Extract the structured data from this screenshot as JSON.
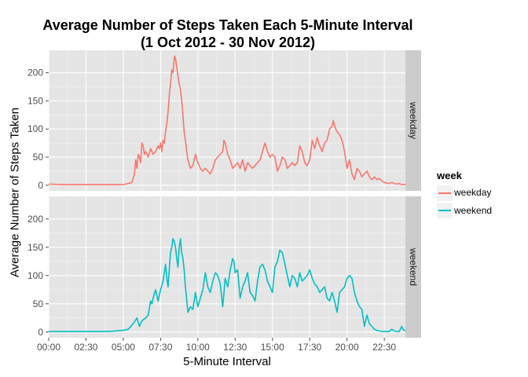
{
  "chart_data": {
    "type": "line",
    "title_line1": "Average Number of Steps Taken Each 5-Minute Interval",
    "title_line2": "(1 Oct 2012 - 30 Nov 2012)",
    "xlabel": "5-Minute Interval",
    "ylabel": "Average Number of Steps Taken",
    "xlim": [
      0,
      1435
    ],
    "ylim": [
      -10,
      240
    ],
    "x_ticks": [
      0,
      150,
      300,
      450,
      600,
      750,
      900,
      1050,
      1200,
      1350
    ],
    "x_tick_labels": [
      "00:00",
      "02:30",
      "05:00",
      "07:30",
      "10:00",
      "12:30",
      "15:00",
      "17:30",
      "20:00",
      "22:30"
    ],
    "y_ticks": [
      0,
      50,
      100,
      150,
      200
    ],
    "y_tick_labels": [
      "0",
      "50",
      "100",
      "150",
      "200"
    ],
    "grid": true,
    "facets": [
      "weekday",
      "weekend"
    ],
    "legend": {
      "title": "week",
      "position": "right",
      "entries": [
        {
          "label": "weekday",
          "color": "#F8766D"
        },
        {
          "label": "weekend",
          "color": "#00BFC4"
        }
      ]
    },
    "series": [
      {
        "name": "weekday",
        "facet": "weekday",
        "color": "#F8766D",
        "points": [
          [
            0,
            2
          ],
          [
            60,
            1
          ],
          [
            120,
            1
          ],
          [
            180,
            1
          ],
          [
            240,
            1
          ],
          [
            300,
            1
          ],
          [
            320,
            3
          ],
          [
            335,
            5
          ],
          [
            345,
            20
          ],
          [
            350,
            45
          ],
          [
            355,
            30
          ],
          [
            360,
            55
          ],
          [
            365,
            50
          ],
          [
            370,
            40
          ],
          [
            375,
            75
          ],
          [
            380,
            70
          ],
          [
            385,
            55
          ],
          [
            390,
            60
          ],
          [
            400,
            50
          ],
          [
            410,
            65
          ],
          [
            420,
            55
          ],
          [
            430,
            60
          ],
          [
            440,
            70
          ],
          [
            445,
            65
          ],
          [
            450,
            75
          ],
          [
            455,
            60
          ],
          [
            460,
            80
          ],
          [
            465,
            75
          ],
          [
            470,
            95
          ],
          [
            475,
            110
          ],
          [
            480,
            130
          ],
          [
            485,
            160
          ],
          [
            490,
            180
          ],
          [
            495,
            205
          ],
          [
            500,
            200
          ],
          [
            503,
            215
          ],
          [
            506,
            230
          ],
          [
            510,
            225
          ],
          [
            515,
            210
          ],
          [
            520,
            195
          ],
          [
            525,
            180
          ],
          [
            530,
            170
          ],
          [
            535,
            150
          ],
          [
            540,
            125
          ],
          [
            545,
            95
          ],
          [
            550,
            80
          ],
          [
            555,
            60
          ],
          [
            560,
            45
          ],
          [
            570,
            30
          ],
          [
            580,
            35
          ],
          [
            590,
            55
          ],
          [
            600,
            40
          ],
          [
            610,
            30
          ],
          [
            620,
            25
          ],
          [
            630,
            30
          ],
          [
            640,
            25
          ],
          [
            650,
            20
          ],
          [
            660,
            30
          ],
          [
            670,
            45
          ],
          [
            680,
            50
          ],
          [
            690,
            55
          ],
          [
            700,
            60
          ],
          [
            705,
            80
          ],
          [
            710,
            75
          ],
          [
            720,
            55
          ],
          [
            730,
            45
          ],
          [
            740,
            30
          ],
          [
            750,
            35
          ],
          [
            760,
            40
          ],
          [
            770,
            30
          ],
          [
            780,
            45
          ],
          [
            790,
            25
          ],
          [
            800,
            40
          ],
          [
            810,
            35
          ],
          [
            820,
            30
          ],
          [
            830,
            35
          ],
          [
            840,
            40
          ],
          [
            850,
            45
          ],
          [
            860,
            60
          ],
          [
            870,
            75
          ],
          [
            880,
            60
          ],
          [
            890,
            50
          ],
          [
            900,
            55
          ],
          [
            910,
            50
          ],
          [
            920,
            25
          ],
          [
            930,
            35
          ],
          [
            940,
            50
          ],
          [
            950,
            45
          ],
          [
            960,
            30
          ],
          [
            970,
            35
          ],
          [
            980,
            40
          ],
          [
            990,
            35
          ],
          [
            1000,
            40
          ],
          [
            1010,
            70
          ],
          [
            1020,
            60
          ],
          [
            1030,
            40
          ],
          [
            1040,
            35
          ],
          [
            1050,
            45
          ],
          [
            1060,
            80
          ],
          [
            1070,
            65
          ],
          [
            1080,
            85
          ],
          [
            1090,
            70
          ],
          [
            1100,
            60
          ],
          [
            1110,
            75
          ],
          [
            1120,
            80
          ],
          [
            1130,
            100
          ],
          [
            1140,
            105
          ],
          [
            1145,
            115
          ],
          [
            1150,
            105
          ],
          [
            1160,
            95
          ],
          [
            1170,
            90
          ],
          [
            1180,
            80
          ],
          [
            1190,
            60
          ],
          [
            1200,
            30
          ],
          [
            1210,
            45
          ],
          [
            1220,
            20
          ],
          [
            1230,
            10
          ],
          [
            1240,
            30
          ],
          [
            1250,
            25
          ],
          [
            1260,
            15
          ],
          [
            1270,
            20
          ],
          [
            1280,
            25
          ],
          [
            1290,
            15
          ],
          [
            1300,
            10
          ],
          [
            1310,
            15
          ],
          [
            1320,
            10
          ],
          [
            1330,
            12
          ],
          [
            1340,
            8
          ],
          [
            1350,
            5
          ],
          [
            1360,
            4
          ],
          [
            1370,
            3
          ],
          [
            1380,
            5
          ],
          [
            1390,
            3
          ],
          [
            1400,
            2
          ],
          [
            1410,
            3
          ],
          [
            1420,
            1
          ],
          [
            1435,
            1
          ]
        ]
      },
      {
        "name": "weekend",
        "facet": "weekend",
        "color": "#00BFC4",
        "points": [
          [
            0,
            1
          ],
          [
            60,
            1
          ],
          [
            120,
            1
          ],
          [
            180,
            1
          ],
          [
            240,
            1
          ],
          [
            270,
            2
          ],
          [
            300,
            3
          ],
          [
            320,
            5
          ],
          [
            340,
            15
          ],
          [
            355,
            25
          ],
          [
            365,
            10
          ],
          [
            375,
            20
          ],
          [
            390,
            25
          ],
          [
            400,
            30
          ],
          [
            410,
            55
          ],
          [
            415,
            50
          ],
          [
            420,
            60
          ],
          [
            430,
            75
          ],
          [
            440,
            55
          ],
          [
            450,
            75
          ],
          [
            460,
            90
          ],
          [
            470,
            120
          ],
          [
            475,
            95
          ],
          [
            480,
            80
          ],
          [
            485,
            110
          ],
          [
            490,
            140
          ],
          [
            495,
            150
          ],
          [
            500,
            165
          ],
          [
            505,
            160
          ],
          [
            510,
            150
          ],
          [
            515,
            130
          ],
          [
            520,
            115
          ],
          [
            525,
            150
          ],
          [
            530,
            165
          ],
          [
            535,
            140
          ],
          [
            540,
            130
          ],
          [
            545,
            110
          ],
          [
            550,
            80
          ],
          [
            560,
            35
          ],
          [
            570,
            45
          ],
          [
            580,
            40
          ],
          [
            590,
            70
          ],
          [
            600,
            45
          ],
          [
            610,
            60
          ],
          [
            620,
            75
          ],
          [
            630,
            105
          ],
          [
            640,
            80
          ],
          [
            650,
            70
          ],
          [
            660,
            90
          ],
          [
            670,
            105
          ],
          [
            680,
            100
          ],
          [
            690,
            85
          ],
          [
            700,
            45
          ],
          [
            710,
            95
          ],
          [
            720,
            80
          ],
          [
            730,
            110
          ],
          [
            740,
            130
          ],
          [
            745,
            125
          ],
          [
            750,
            105
          ],
          [
            760,
            110
          ],
          [
            770,
            60
          ],
          [
            780,
            80
          ],
          [
            790,
            90
          ],
          [
            800,
            105
          ],
          [
            810,
            70
          ],
          [
            820,
            65
          ],
          [
            830,
            55
          ],
          [
            840,
            90
          ],
          [
            850,
            115
          ],
          [
            860,
            120
          ],
          [
            870,
            110
          ],
          [
            880,
            90
          ],
          [
            890,
            80
          ],
          [
            900,
            70
          ],
          [
            910,
            115
          ],
          [
            920,
            125
          ],
          [
            930,
            145
          ],
          [
            940,
            140
          ],
          [
            950,
            120
          ],
          [
            960,
            100
          ],
          [
            970,
            80
          ],
          [
            980,
            100
          ],
          [
            990,
            95
          ],
          [
            1000,
            80
          ],
          [
            1010,
            105
          ],
          [
            1020,
            90
          ],
          [
            1030,
            95
          ],
          [
            1040,
            100
          ],
          [
            1050,
            110
          ],
          [
            1060,
            95
          ],
          [
            1070,
            85
          ],
          [
            1080,
            80
          ],
          [
            1090,
            70
          ],
          [
            1100,
            75
          ],
          [
            1110,
            80
          ],
          [
            1120,
            60
          ],
          [
            1130,
            55
          ],
          [
            1140,
            70
          ],
          [
            1150,
            55
          ],
          [
            1160,
            35
          ],
          [
            1170,
            70
          ],
          [
            1180,
            75
          ],
          [
            1190,
            80
          ],
          [
            1200,
            95
          ],
          [
            1210,
            100
          ],
          [
            1220,
            95
          ],
          [
            1230,
            70
          ],
          [
            1240,
            55
          ],
          [
            1250,
            45
          ],
          [
            1260,
            40
          ],
          [
            1270,
            10
          ],
          [
            1280,
            30
          ],
          [
            1290,
            15
          ],
          [
            1300,
            10
          ],
          [
            1310,
            5
          ],
          [
            1320,
            3
          ],
          [
            1330,
            2
          ],
          [
            1340,
            1
          ],
          [
            1350,
            1
          ],
          [
            1370,
            1
          ],
          [
            1380,
            5
          ],
          [
            1390,
            2
          ],
          [
            1400,
            1
          ],
          [
            1410,
            1
          ],
          [
            1420,
            10
          ],
          [
            1425,
            5
          ],
          [
            1435,
            2
          ]
        ]
      }
    ]
  }
}
